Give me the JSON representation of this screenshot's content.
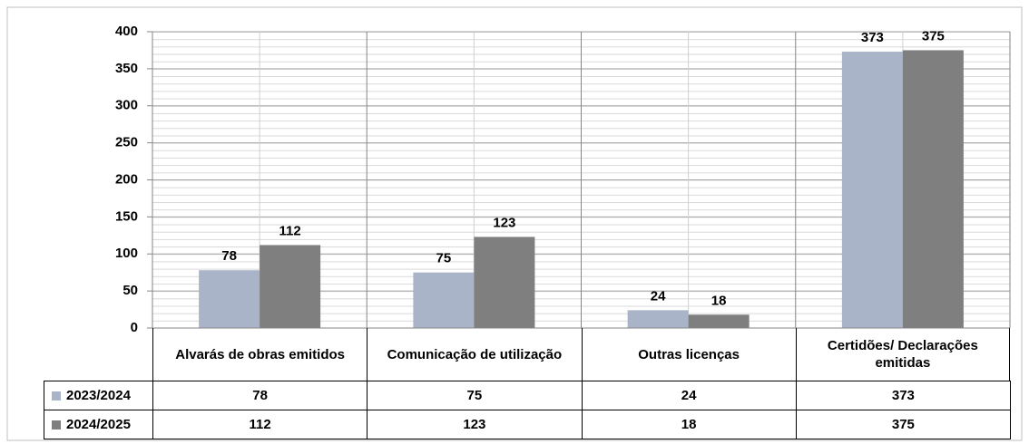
{
  "chart_data": {
    "type": "bar",
    "categories": [
      "Alvarás de obras emitidos",
      "Comunicação de utilização",
      "Outras licenças",
      "Certidões/ Declarações emitidas"
    ],
    "series": [
      {
        "name": "2023/2024",
        "color": "#a9b4c9",
        "values": [
          78,
          75,
          24,
          373
        ]
      },
      {
        "name": "2024/2025",
        "color": "#7f7f7f",
        "values": [
          112,
          123,
          18,
          375
        ]
      }
    ],
    "ylim": [
      0,
      400
    ],
    "yticks": [
      0,
      50,
      100,
      150,
      200,
      250,
      300,
      350,
      400
    ],
    "grid": true
  }
}
